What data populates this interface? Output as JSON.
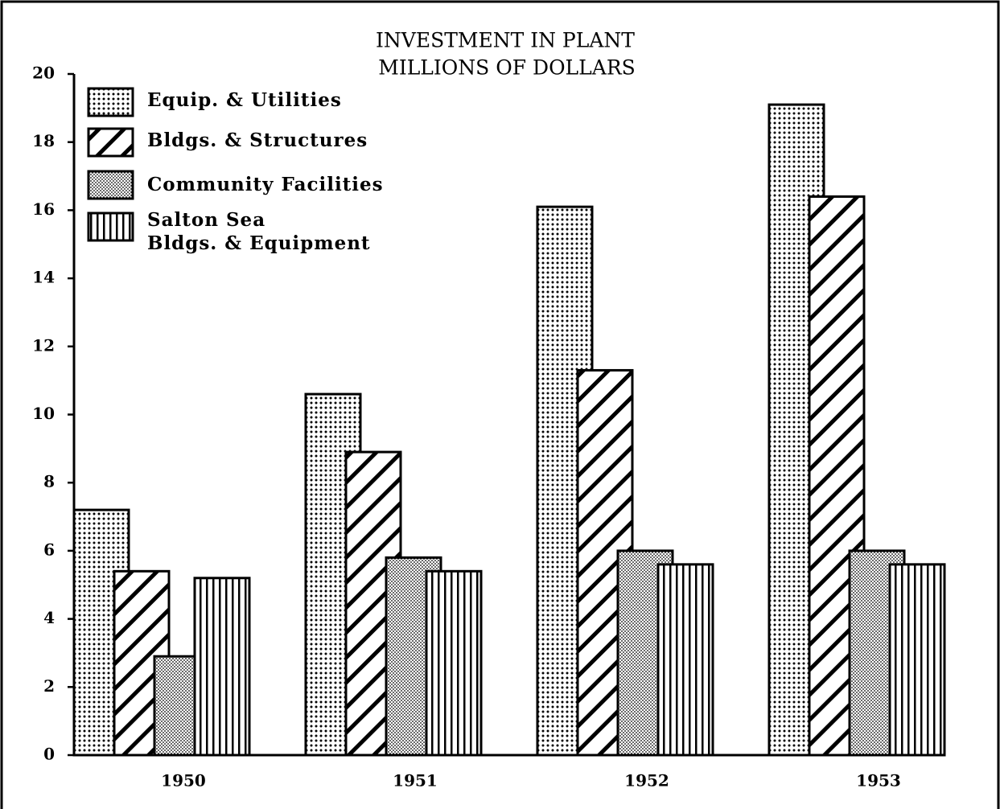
{
  "chart_data": {
    "type": "bar",
    "title": "INVESTMENT IN PLANT",
    "subtitle": "MILLIONS OF DOLLARS",
    "categories": [
      "1950",
      "1951",
      "1952",
      "1953"
    ],
    "series": [
      {
        "name": "Equip. & Utilities",
        "color": "#000000",
        "pattern": "dots",
        "values": [
          7.2,
          10.6,
          16.1,
          19.1
        ]
      },
      {
        "name": "Bldgs. & Structures",
        "color": "#000000",
        "pattern": "diagonal",
        "values": [
          5.4,
          8.9,
          11.3,
          16.4
        ]
      },
      {
        "name": "Community Facilities",
        "color": "#000000",
        "pattern": "stipple",
        "values": [
          2.9,
          5.8,
          6.0,
          6.0
        ]
      },
      {
        "name": "Salton Sea\nBldgs. & Equipment",
        "color": "#000000",
        "pattern": "vertical",
        "values": [
          5.2,
          5.4,
          5.6,
          5.6
        ]
      }
    ],
    "ylim": [
      0,
      20
    ],
    "yticks": [
      0,
      2,
      4,
      6,
      8,
      10,
      12,
      14,
      16,
      18,
      20
    ],
    "legend": "upper left"
  }
}
